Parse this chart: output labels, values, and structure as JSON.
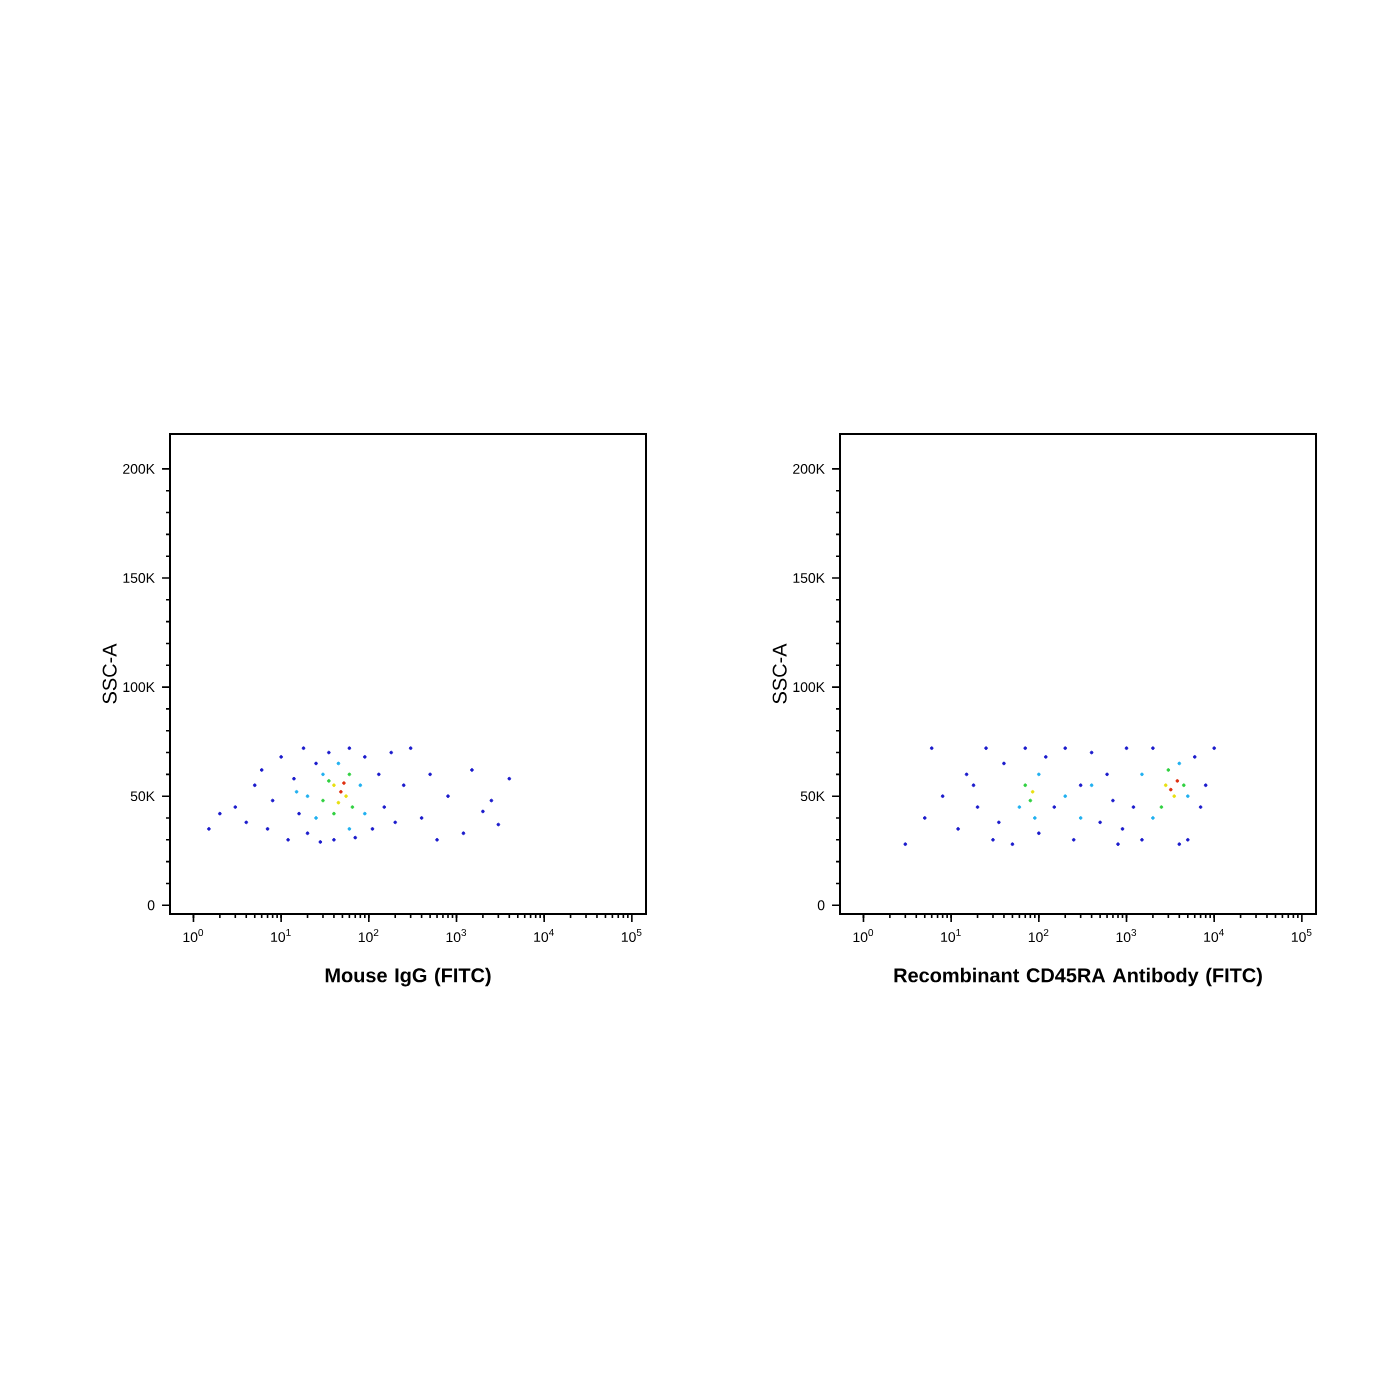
{
  "chart_data": [
    {
      "type": "scatter",
      "xlabel": "Mouse IgG (FITC)",
      "ylabel": "SSC-A",
      "log": "x",
      "grid": false,
      "xlim": [
        0.54,
        145000
      ],
      "ylim": [
        -4000,
        216000
      ],
      "xticks": [
        {
          "value": 1,
          "label": "10$^{0}$"
        },
        {
          "value": 10,
          "label": "10$^{1}$"
        },
        {
          "value": 100,
          "label": "10$^{2}$"
        },
        {
          "value": 1000,
          "label": "10$^{3}$"
        },
        {
          "value": 10000,
          "label": "10$^{4}$"
        },
        {
          "value": 100000,
          "label": "10$^{5}$"
        }
      ],
      "yticks": [
        0,
        {
          "value": 50000,
          "label": "50K"
        },
        {
          "value": 100000,
          "label": "100K"
        },
        {
          "value": 150000,
          "label": "150K"
        },
        {
          "value": 200000,
          "label": "200K"
        }
      ],
      "series": [
        {
          "color": "#1a1acc",
          "x": [
            3,
            4,
            5,
            6,
            7,
            8,
            10,
            12,
            14,
            16,
            18,
            20,
            25,
            28,
            35,
            40,
            60,
            70,
            90,
            110,
            130,
            150,
            180,
            200,
            250,
            300,
            1.5,
            2,
            400,
            500,
            800,
            1500,
            2000,
            3000,
            4000,
            1200,
            600,
            2500
          ],
          "values": [
            45000,
            38000,
            55000,
            62000,
            35000,
            48000,
            68000,
            30000,
            58000,
            42000,
            72000,
            33000,
            65000,
            29000,
            70000,
            30000,
            72000,
            31000,
            68000,
            35000,
            60000,
            45000,
            70000,
            38000,
            55000,
            72000,
            35000,
            42000,
            40000,
            60000,
            50000,
            62000,
            43000,
            37000,
            58000,
            33000,
            30000,
            48000
          ]
        },
        {
          "color": "#20b0f0",
          "x": [
            20,
            25,
            30,
            45,
            80,
            90,
            15,
            60
          ],
          "values": [
            50000,
            40000,
            60000,
            65000,
            55000,
            42000,
            52000,
            35000
          ]
        },
        {
          "color": "#30d040",
          "x": [
            30,
            35,
            60,
            65,
            40
          ],
          "values": [
            48000,
            57000,
            60000,
            45000,
            42000
          ]
        },
        {
          "color": "#e8e010",
          "x": [
            40,
            55,
            45
          ],
          "values": [
            55000,
            50000,
            47000
          ]
        },
        {
          "color": "#e03010",
          "x": [
            48,
            52
          ],
          "values": [
            52000,
            56000
          ]
        }
      ]
    },
    {
      "type": "scatter",
      "xlabel": "Recombinant CD45RA Antibody (FITC)",
      "ylabel": "SSC-A",
      "log": "x",
      "grid": false,
      "xlim": [
        0.54,
        145000
      ],
      "ylim": [
        -4000,
        216000
      ],
      "xticks": [
        {
          "value": 1,
          "label": "10$^{0}$"
        },
        {
          "value": 10,
          "label": "10$^{1}$"
        },
        {
          "value": 100,
          "label": "10$^{2}$"
        },
        {
          "value": 1000,
          "label": "10$^{3}$"
        },
        {
          "value": 10000,
          "label": "10$^{4}$"
        },
        {
          "value": 100000,
          "label": "10$^{5}$"
        }
      ],
      "yticks": [
        0,
        {
          "value": 50000,
          "label": "50K"
        },
        {
          "value": 100000,
          "label": "100K"
        },
        {
          "value": 150000,
          "label": "150K"
        },
        {
          "value": 200000,
          "label": "200K"
        }
      ],
      "series": [
        {
          "color": "#1a1acc",
          "x": [
            5,
            8,
            12,
            15,
            20,
            25,
            30,
            40,
            50,
            70,
            100,
            120,
            150,
            200,
            250,
            300,
            400,
            500,
            600,
            800,
            1000,
            1200,
            1500,
            2000,
            5000,
            6000,
            7000,
            8000,
            10000,
            4000,
            3,
            6,
            18,
            35,
            700,
            900
          ],
          "values": [
            40000,
            50000,
            35000,
            60000,
            45000,
            72000,
            30000,
            65000,
            28000,
            72000,
            33000,
            68000,
            45000,
            72000,
            30000,
            55000,
            70000,
            38000,
            60000,
            28000,
            72000,
            45000,
            30000,
            72000,
            30000,
            68000,
            45000,
            55000,
            72000,
            28000,
            28000,
            72000,
            55000,
            38000,
            48000,
            35000
          ]
        },
        {
          "color": "#20b0f0",
          "x": [
            60,
            100,
            90,
            200,
            400,
            1500,
            2000,
            5000,
            4000,
            300
          ],
          "values": [
            45000,
            60000,
            40000,
            50000,
            55000,
            60000,
            40000,
            50000,
            65000,
            40000
          ]
        },
        {
          "color": "#30d040",
          "x": [
            70,
            80,
            2500,
            3000,
            4500
          ],
          "values": [
            55000,
            48000,
            45000,
            62000,
            55000
          ]
        },
        {
          "color": "#e8e010",
          "x": [
            85,
            3500,
            2800
          ],
          "values": [
            52000,
            50000,
            55000
          ]
        },
        {
          "color": "#e03010",
          "x": [
            3200,
            3800
          ],
          "values": [
            53000,
            57000
          ]
        }
      ]
    }
  ]
}
